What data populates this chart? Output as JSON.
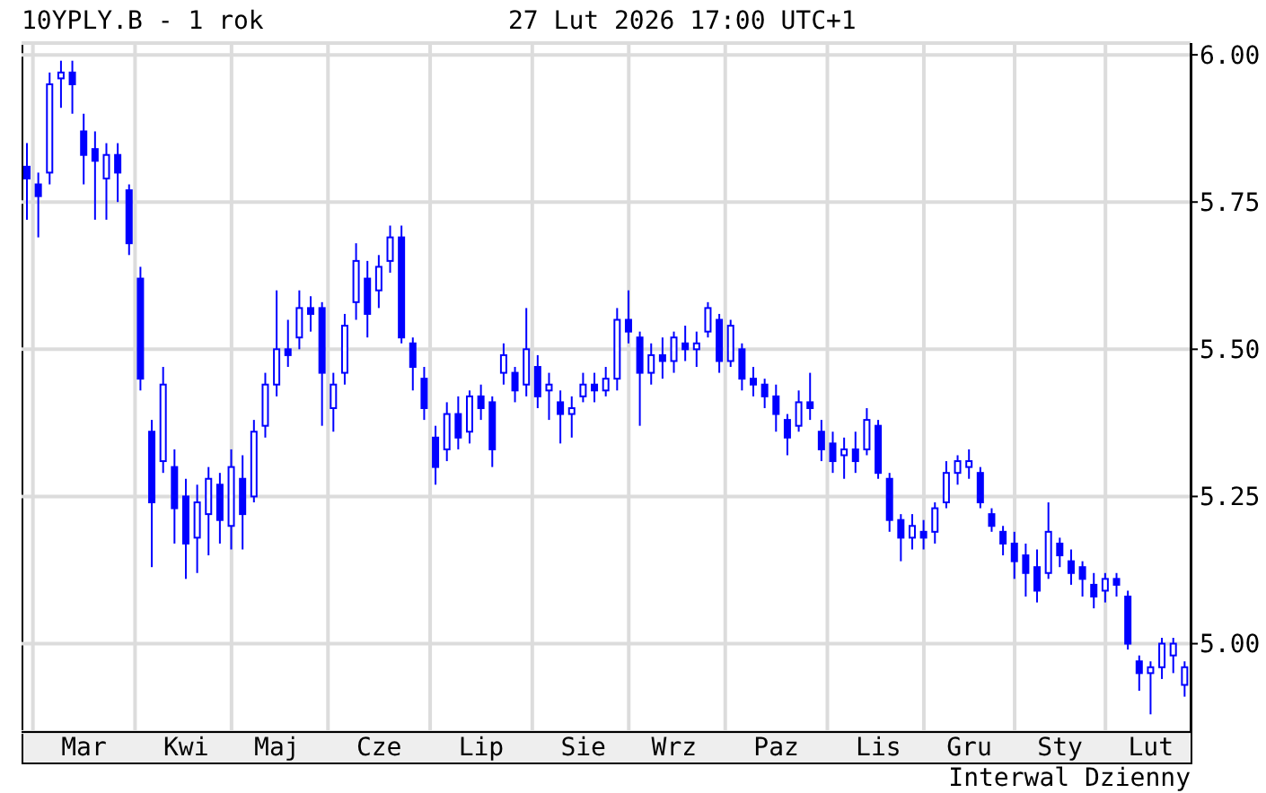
{
  "chart_data": {
    "type": "candlestick",
    "title": "10YPLY.B - 1 rok",
    "subtitle": "27 Lut 2026 17:00 UTC+1",
    "annotations": [
      "Interwal Dzienny"
    ],
    "color": "#0000ff",
    "grid": true,
    "categories": [
      null,
      null,
      null,
      null,
      null,
      "Mar",
      null,
      null,
      null,
      null,
      null,
      null,
      null,
      null,
      "Kwi",
      null,
      null,
      null,
      null,
      null,
      null,
      null,
      "Maj",
      null,
      null,
      null,
      null,
      null,
      null,
      null,
      null,
      "Cze",
      null,
      null,
      null,
      null,
      null,
      null,
      null,
      null,
      "Lip",
      null,
      null,
      null,
      null,
      null,
      null,
      null,
      null,
      "Sie",
      null,
      null,
      null,
      null,
      null,
      null,
      null,
      "Wrz",
      null,
      null,
      null,
      null,
      null,
      null,
      null,
      null,
      "Paz",
      null,
      null,
      null,
      null,
      null,
      null,
      null,
      null,
      "Lis",
      null,
      null,
      null,
      null,
      null,
      null,
      null,
      "Gru",
      null,
      null,
      null,
      null,
      null,
      null,
      null,
      "Sty",
      null,
      null,
      null,
      null,
      null,
      null,
      null,
      "Lut",
      null,
      null,
      null
    ],
    "ylim": [
      4.85,
      6.02
    ],
    "yticks": [
      {
        "value": 5,
        "label": "5.00"
      },
      5.25,
      {
        "value": 5.5,
        "label": "5.50"
      },
      5.75,
      {
        "value": 6,
        "label": "6.00"
      }
    ],
    "ohlc": [
      [
        5.81,
        5.85,
        5.72,
        5.79
      ],
      [
        5.78,
        5.8,
        5.69,
        5.76
      ],
      [
        5.8,
        5.97,
        5.78,
        5.95
      ],
      [
        5.96,
        5.99,
        5.91,
        5.97
      ],
      [
        5.97,
        5.99,
        5.9,
        5.95
      ],
      [
        5.87,
        5.9,
        5.78,
        5.83
      ],
      [
        5.84,
        5.87,
        5.72,
        5.82
      ],
      [
        5.79,
        5.85,
        5.72,
        5.83
      ],
      [
        5.83,
        5.85,
        5.75,
        5.8
      ],
      [
        5.77,
        5.78,
        5.66,
        5.68
      ],
      [
        5.62,
        5.64,
        5.43,
        5.45
      ],
      [
        5.36,
        5.38,
        5.13,
        5.24
      ],
      [
        5.31,
        5.47,
        5.29,
        5.44
      ],
      [
        5.3,
        5.33,
        5.17,
        5.23
      ],
      [
        5.25,
        5.28,
        5.11,
        5.17
      ],
      [
        5.18,
        5.27,
        5.12,
        5.24
      ],
      [
        5.22,
        5.3,
        5.15,
        5.28
      ],
      [
        5.27,
        5.29,
        5.17,
        5.21
      ],
      [
        5.2,
        5.33,
        5.16,
        5.3
      ],
      [
        5.28,
        5.32,
        5.16,
        5.22
      ],
      [
        5.25,
        5.38,
        5.24,
        5.36
      ],
      [
        5.37,
        5.46,
        5.35,
        5.44
      ],
      [
        5.44,
        5.6,
        5.42,
        5.5
      ],
      [
        5.5,
        5.55,
        5.47,
        5.49
      ],
      [
        5.52,
        5.6,
        5.5,
        5.57
      ],
      [
        5.57,
        5.59,
        5.53,
        5.56
      ],
      [
        5.57,
        5.58,
        5.37,
        5.46
      ],
      [
        5.4,
        5.46,
        5.36,
        5.44
      ],
      [
        5.46,
        5.56,
        5.44,
        5.54
      ],
      [
        5.58,
        5.68,
        5.55,
        5.65
      ],
      [
        5.62,
        5.65,
        5.52,
        5.56
      ],
      [
        5.6,
        5.66,
        5.57,
        5.64
      ],
      [
        5.65,
        5.71,
        5.63,
        5.69
      ],
      [
        5.69,
        5.71,
        5.51,
        5.52
      ],
      [
        5.51,
        5.52,
        5.43,
        5.47
      ],
      [
        5.45,
        5.47,
        5.38,
        5.4
      ],
      [
        5.35,
        5.37,
        5.27,
        5.3
      ],
      [
        5.33,
        5.41,
        5.31,
        5.39
      ],
      [
        5.39,
        5.42,
        5.33,
        5.35
      ],
      [
        5.36,
        5.43,
        5.34,
        5.42
      ],
      [
        5.42,
        5.44,
        5.38,
        5.4
      ],
      [
        5.41,
        5.42,
        5.3,
        5.33
      ],
      [
        5.46,
        5.51,
        5.44,
        5.49
      ],
      [
        5.46,
        5.47,
        5.41,
        5.43
      ],
      [
        5.44,
        5.57,
        5.42,
        5.5
      ],
      [
        5.47,
        5.49,
        5.4,
        5.42
      ],
      [
        5.43,
        5.46,
        5.38,
        5.44
      ],
      [
        5.41,
        5.43,
        5.34,
        5.39
      ],
      [
        5.39,
        5.42,
        5.35,
        5.4
      ],
      [
        5.42,
        5.46,
        5.41,
        5.44
      ],
      [
        5.44,
        5.46,
        5.41,
        5.43
      ],
      [
        5.43,
        5.47,
        5.42,
        5.45
      ],
      [
        5.45,
        5.57,
        5.43,
        5.55
      ],
      [
        5.55,
        5.6,
        5.51,
        5.53
      ],
      [
        5.52,
        5.53,
        5.37,
        5.46
      ],
      [
        5.46,
        5.51,
        5.44,
        5.49
      ],
      [
        5.49,
        5.52,
        5.45,
        5.48
      ],
      [
        5.48,
        5.53,
        5.46,
        5.52
      ],
      [
        5.51,
        5.54,
        5.48,
        5.5
      ],
      [
        5.5,
        5.53,
        5.47,
        5.51
      ],
      [
        5.53,
        5.58,
        5.52,
        5.57
      ],
      [
        5.55,
        5.56,
        5.46,
        5.48
      ],
      [
        5.48,
        5.55,
        5.47,
        5.54
      ],
      [
        5.5,
        5.51,
        5.43,
        5.45
      ],
      [
        5.45,
        5.47,
        5.42,
        5.44
      ],
      [
        5.44,
        5.45,
        5.4,
        5.42
      ],
      [
        5.42,
        5.44,
        5.36,
        5.39
      ],
      [
        5.38,
        5.39,
        5.32,
        5.35
      ],
      [
        5.37,
        5.43,
        5.36,
        5.41
      ],
      [
        5.41,
        5.46,
        5.38,
        5.4
      ],
      [
        5.36,
        5.38,
        5.31,
        5.33
      ],
      [
        5.34,
        5.36,
        5.29,
        5.31
      ],
      [
        5.32,
        5.35,
        5.28,
        5.33
      ],
      [
        5.33,
        5.36,
        5.29,
        5.31
      ],
      [
        5.33,
        5.4,
        5.32,
        5.38
      ],
      [
        5.37,
        5.38,
        5.28,
        5.29
      ],
      [
        5.28,
        5.29,
        5.19,
        5.21
      ],
      [
        5.21,
        5.22,
        5.14,
        5.18
      ],
      [
        5.18,
        5.22,
        5.16,
        5.2
      ],
      [
        5.19,
        5.21,
        5.16,
        5.18
      ],
      [
        5.19,
        5.24,
        5.17,
        5.23
      ],
      [
        5.24,
        5.31,
        5.23,
        5.29
      ],
      [
        5.29,
        5.32,
        5.27,
        5.31
      ],
      [
        5.3,
        5.33,
        5.28,
        5.31
      ],
      [
        5.29,
        5.3,
        5.23,
        5.24
      ],
      [
        5.22,
        5.23,
        5.19,
        5.2
      ],
      [
        5.19,
        5.2,
        5.15,
        5.17
      ],
      [
        5.17,
        5.19,
        5.11,
        5.14
      ],
      [
        5.15,
        5.17,
        5.08,
        5.12
      ],
      [
        5.13,
        5.16,
        5.07,
        5.09
      ],
      [
        5.12,
        5.24,
        5.11,
        5.19
      ],
      [
        5.17,
        5.18,
        5.13,
        5.15
      ],
      [
        5.14,
        5.16,
        5.1,
        5.12
      ],
      [
        5.13,
        5.14,
        5.08,
        5.11
      ],
      [
        5.1,
        5.12,
        5.06,
        5.08
      ],
      [
        5.09,
        5.12,
        5.07,
        5.11
      ],
      [
        5.11,
        5.12,
        5.08,
        5.1
      ],
      [
        5.08,
        5.09,
        4.99,
        5.0
      ],
      [
        4.97,
        4.98,
        4.92,
        4.95
      ],
      [
        4.95,
        4.97,
        4.88,
        4.96
      ],
      [
        4.96,
        5.01,
        4.94,
        5.0
      ],
      [
        4.98,
        5.01,
        4.95,
        5.0
      ],
      [
        4.93,
        4.97,
        4.91,
        4.96
      ]
    ]
  }
}
